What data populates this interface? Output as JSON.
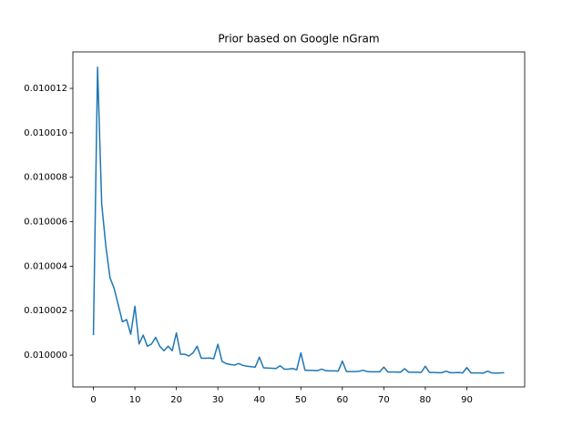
{
  "chart_data": {
    "type": "line",
    "title": "Prior based on Google nGram",
    "x": [
      0,
      1,
      2,
      3,
      4,
      5,
      6,
      7,
      8,
      9,
      10,
      11,
      12,
      13,
      14,
      15,
      16,
      17,
      18,
      19,
      20,
      21,
      22,
      23,
      24,
      25,
      26,
      27,
      28,
      29,
      30,
      31,
      32,
      33,
      34,
      35,
      36,
      37,
      38,
      39,
      40,
      41,
      42,
      43,
      44,
      45,
      46,
      47,
      48,
      49,
      50,
      51,
      52,
      53,
      54,
      55,
      56,
      57,
      58,
      59,
      60,
      61,
      62,
      63,
      64,
      65,
      66,
      67,
      68,
      69,
      70,
      71,
      72,
      73,
      74,
      75,
      76,
      77,
      78,
      79,
      80,
      81,
      82,
      83,
      84,
      85,
      86,
      87,
      88,
      89,
      90,
      91,
      92,
      93,
      94,
      95,
      96,
      97,
      98,
      99
    ],
    "series": [
      {
        "color": "#1f77b4",
        "values": [
          0.0100009,
          0.01001295,
          0.0100068,
          0.0100049,
          0.01000348,
          0.010003,
          0.01000225,
          0.0100015,
          0.0100016,
          0.01000094,
          0.0100022,
          0.0100005,
          0.0100009,
          0.0100004,
          0.0100005,
          0.0100008,
          0.0100004,
          0.0100002,
          0.0100004,
          0.0100002,
          0.010001,
          0.01000004,
          0.01000004,
          0.00999996,
          0.0100001,
          0.0100004,
          0.00999986,
          0.00999986,
          0.00999987,
          0.00999984,
          0.01000049,
          0.00999972,
          0.00999962,
          0.00999958,
          0.00999955,
          0.00999962,
          0.00999954,
          0.0099995,
          0.00999948,
          0.00999946,
          0.00999991,
          0.00999943,
          0.00999942,
          0.00999941,
          0.0099994,
          0.00999952,
          0.00999937,
          0.00999937,
          0.0099994,
          0.00999934,
          0.0100001,
          0.00999932,
          0.00999932,
          0.00999931,
          0.0099993,
          0.00999937,
          0.0099993,
          0.00999929,
          0.00999929,
          0.00999928,
          0.00999973,
          0.00999926,
          0.00999926,
          0.00999926,
          0.00999927,
          0.00999932,
          0.00999926,
          0.00999925,
          0.00999925,
          0.00999925,
          0.00999946,
          0.00999924,
          0.00999924,
          0.00999924,
          0.00999923,
          0.00999939,
          0.00999923,
          0.00999923,
          0.00999923,
          0.00999922,
          0.0099995,
          0.00999922,
          0.00999922,
          0.00999921,
          0.00999921,
          0.00999928,
          0.00999921,
          0.00999921,
          0.00999922,
          0.0099992,
          0.00999944,
          0.0099992,
          0.0099992,
          0.0099992,
          0.00999919,
          0.00999928,
          0.0099992,
          0.00999919,
          0.0099992,
          0.00999921
        ]
      }
    ],
    "xlim": [
      -4.95,
      103.95
    ],
    "xticks": [
      0,
      10,
      20,
      30,
      40,
      50,
      60,
      70,
      80,
      90
    ],
    "ylim": [
      0.00999857,
      0.01001364
    ],
    "yticks": [
      {
        "value": 0.01,
        "label": "0.010000"
      },
      {
        "value": 0.010002,
        "label": "0.010002"
      },
      {
        "value": 0.010004,
        "label": "0.010004"
      },
      {
        "value": 0.010006,
        "label": "0.010006"
      },
      {
        "value": 0.010008,
        "label": "0.010008"
      },
      {
        "value": 0.01001,
        "label": "0.010010"
      },
      {
        "value": 0.010012,
        "label": "0.010012"
      }
    ],
    "grid": false
  }
}
